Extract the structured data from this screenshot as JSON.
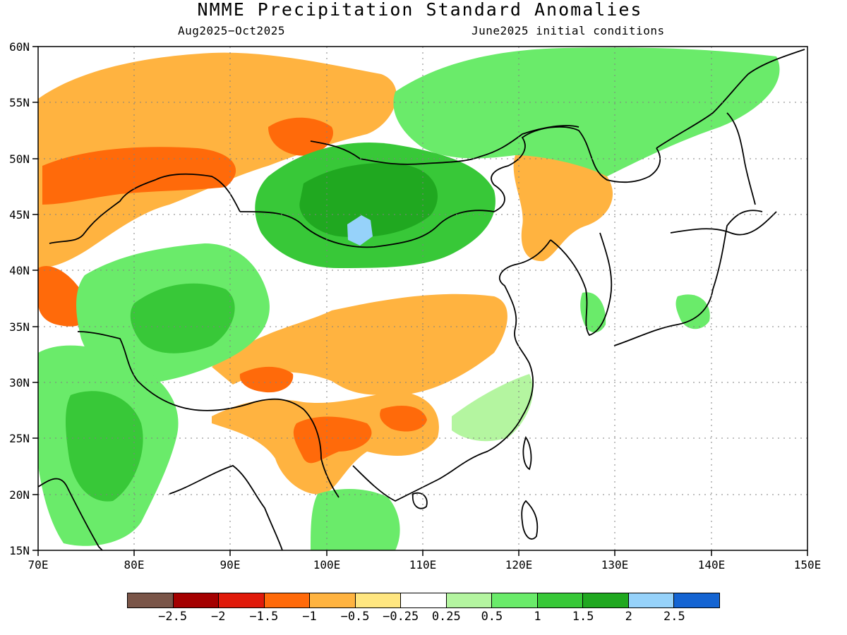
{
  "title": "NMME Precipitation Standard Anomalies",
  "period": "Aug2025−Oct2025",
  "initial_conditions": "June2025 initial conditions",
  "map": {
    "lon_range": [
      70,
      150
    ],
    "lat_range": [
      15,
      60
    ],
    "x_ticks": [
      "70E",
      "80E",
      "90E",
      "100E",
      "110E",
      "120E",
      "130E",
      "140E",
      "150E"
    ],
    "y_ticks": [
      "60N",
      "55N",
      "50N",
      "45N",
      "40N",
      "35N",
      "30N",
      "25N",
      "20N",
      "15N"
    ]
  },
  "legend": {
    "colors": [
      "#7a5548",
      "#a40000",
      "#e01a0a",
      "#ff6a0a",
      "#ffb340",
      "#ffe680",
      "#ffffff",
      "#b4f5a0",
      "#6aeb6a",
      "#38c838",
      "#20a820",
      "#96d2fa",
      "#1464d2"
    ],
    "labels": [
      "−2.5",
      "−2",
      "−1.5",
      "−1",
      "−0.5",
      "−0.25",
      "0.25",
      "0.5",
      "1",
      "1.5",
      "2",
      "2.5"
    ]
  },
  "colors": {
    "dry_strong": "#ff6a0a",
    "dry": "#ffb340",
    "dry_weak": "#ffe680",
    "wet_weak": "#b4f5a0",
    "wet": "#6aeb6a",
    "wet_mid": "#38c838",
    "wet_strong": "#20a820",
    "very_wet": "#96d2fa"
  }
}
